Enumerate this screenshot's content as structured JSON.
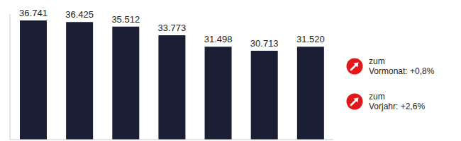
{
  "chart_data": {
    "type": "bar",
    "categories": [
      null,
      null,
      null,
      null,
      null,
      null,
      null
    ],
    "values": [
      36741,
      36425,
      35512,
      33773,
      31498,
      30713,
      31520
    ],
    "value_labels": [
      "36.741",
      "36.425",
      "35.512",
      "33.773",
      "31.498",
      "30.713",
      "31.520"
    ],
    "color": "#1b1f35",
    "ylim": [
      13000,
      38000
    ],
    "data_labels": true,
    "tick_labels": false,
    "grid": false,
    "annotations": [
      {
        "lines": [
          "zum",
          "Vormonat: +0,8%"
        ]
      },
      {
        "lines": [
          "zum",
          "Vorjahr: +2,6%"
        ]
      }
    ]
  }
}
